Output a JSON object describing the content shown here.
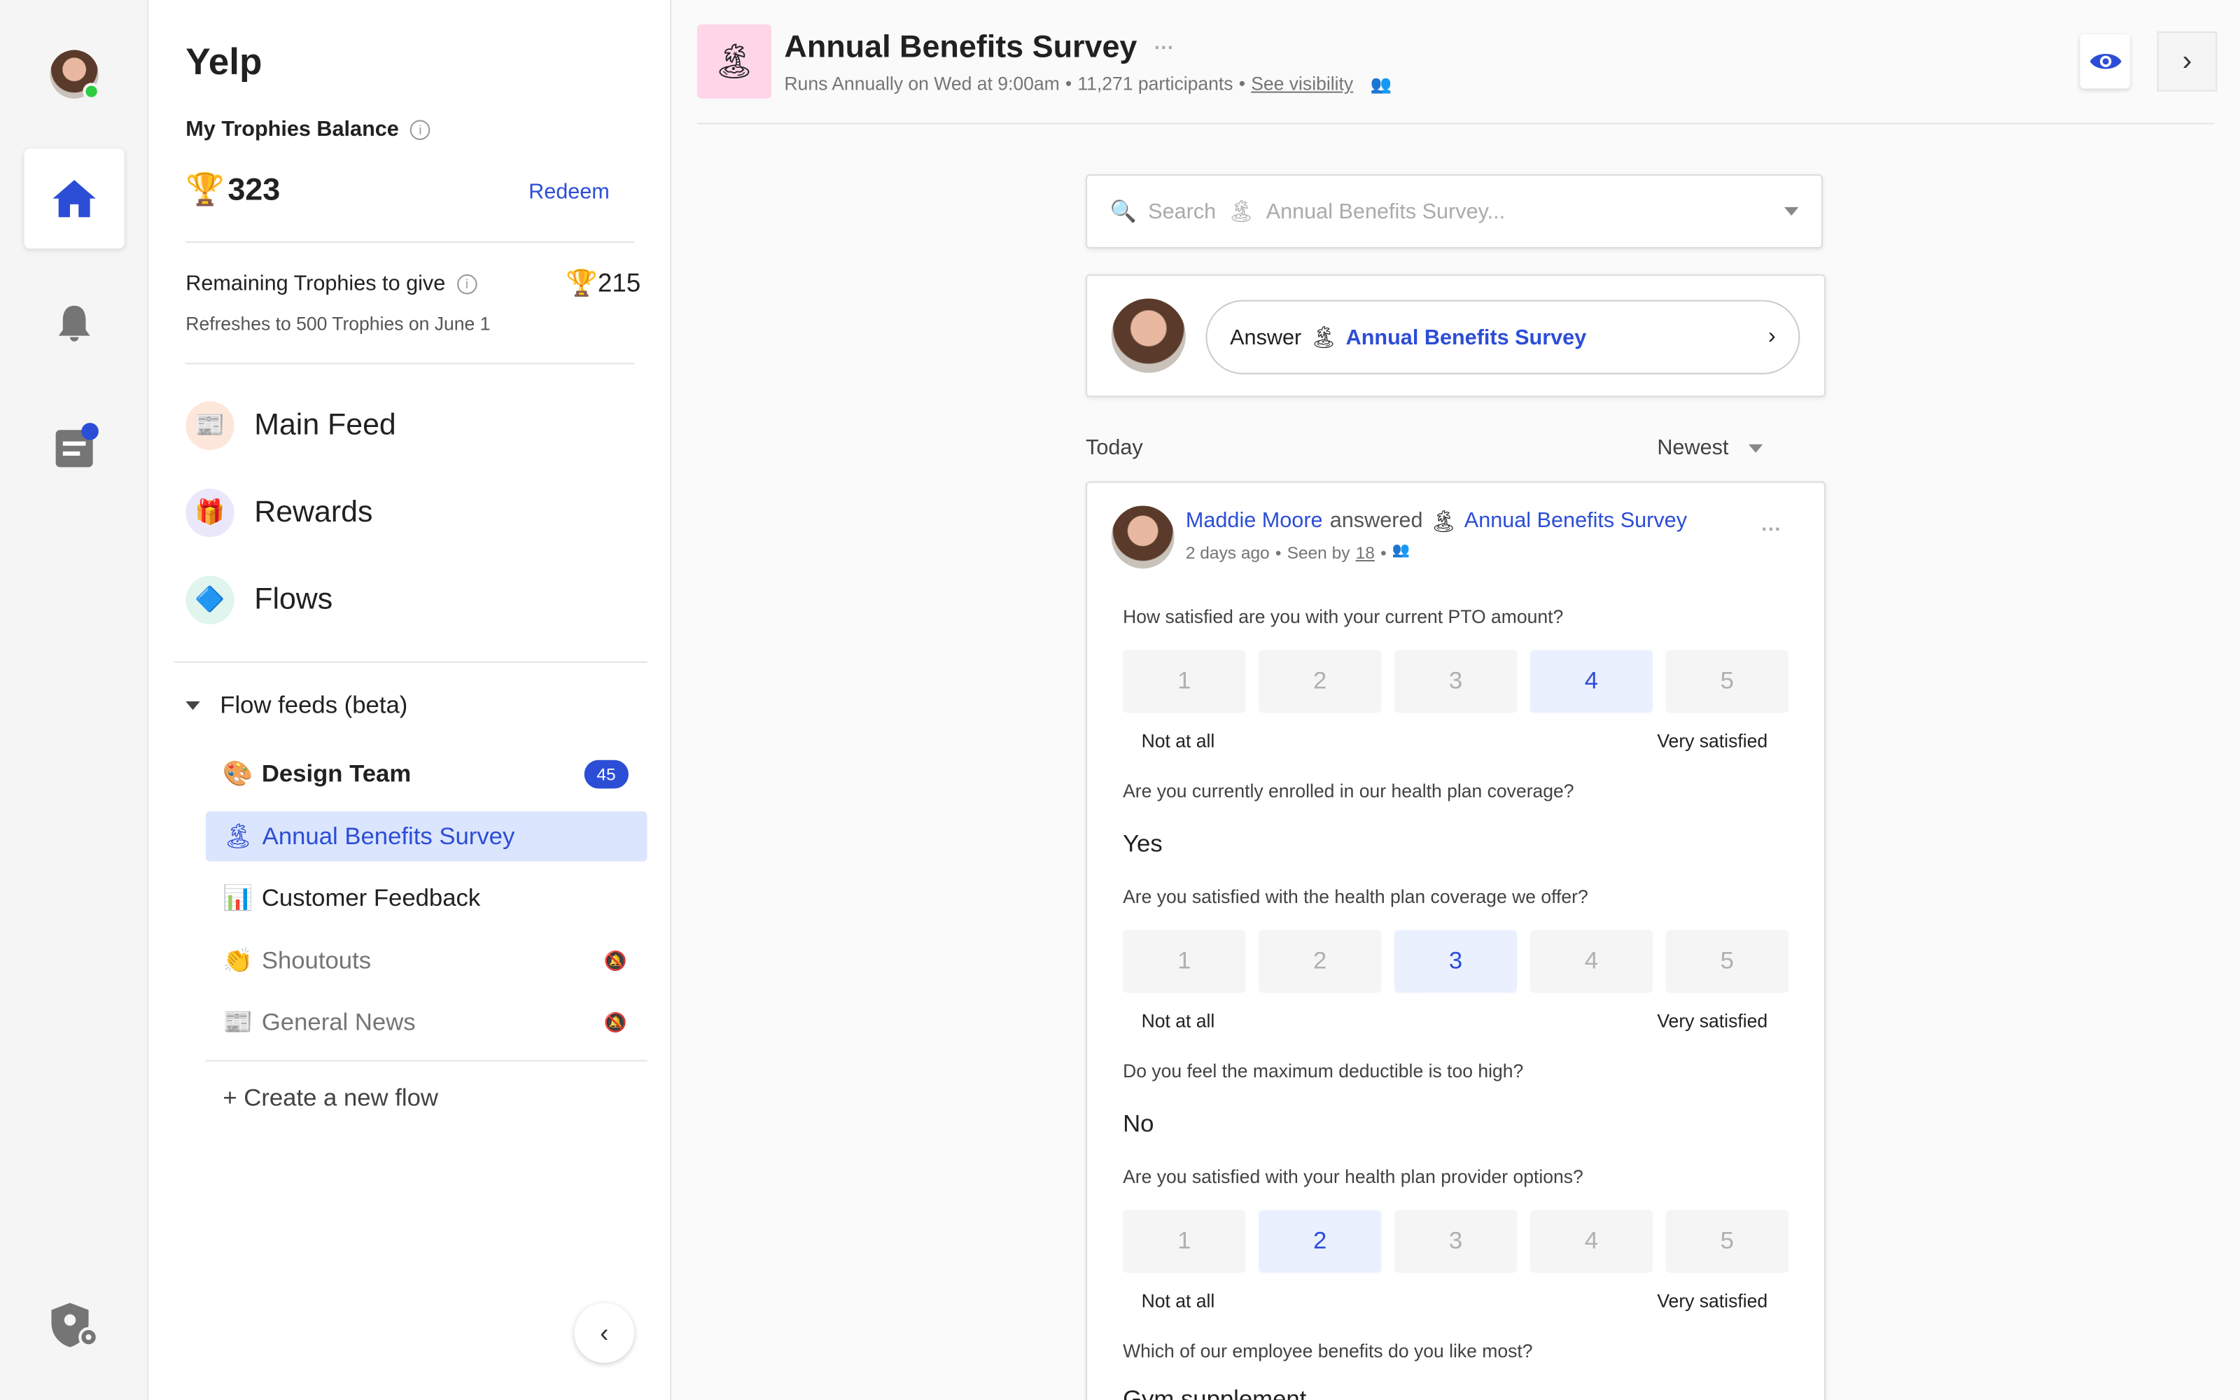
{
  "rail": {
    "items": [
      "home-icon",
      "bell-icon",
      "clipboard-icon",
      "shield-gear-icon"
    ]
  },
  "sidebar": {
    "org": "Yelp",
    "balance_label": "My Trophies Balance",
    "balance": "323",
    "redeem": "Redeem",
    "remaining_label": "Remaining Trophies to give",
    "remaining": "215",
    "refresh_note": "Refreshes to 500 Trophies on June 1",
    "nav": [
      {
        "label": "Main Feed",
        "icon": "📰"
      },
      {
        "label": "Rewards",
        "icon": "🎁"
      },
      {
        "label": "Flows",
        "icon": "🔷"
      }
    ],
    "flow_feeds_label": "Flow feeds (beta)",
    "flows": [
      {
        "emoji": "🎨",
        "label": "Design Team",
        "badge": "45"
      },
      {
        "emoji": "🏝",
        "label": "Annual Benefits Survey",
        "active": true
      },
      {
        "emoji": "📊",
        "label": "Customer Feedback"
      },
      {
        "emoji": "👏",
        "label": "Shoutouts",
        "muted": true
      },
      {
        "emoji": "📰",
        "label": "General News",
        "muted": true
      }
    ],
    "create_flow": "+ Create a new flow"
  },
  "header": {
    "emoji": "🏝",
    "title": "Annual Benefits Survey",
    "schedule": "Runs Annually on Wed at 9:00am",
    "participants": "11,271 participants",
    "visibility_link": "See visibility",
    "icon_bg": "#ffd6e8"
  },
  "search": {
    "placeholder_prefix": "Search",
    "placeholder_flow": "Annual Benefits Survey..."
  },
  "answer_prompt": {
    "prefix": "Answer",
    "flow": "Annual Benefits Survey"
  },
  "feed": {
    "section": "Today",
    "sort": "Newest"
  },
  "post": {
    "author": "Maddie Moore",
    "verb": "answered",
    "flow": "Annual Benefits Survey",
    "time": "2 days ago",
    "seen_prefix": "Seen by",
    "seen_count": "18",
    "questions": [
      {
        "text": "How satisfied are you with your current PTO amount?",
        "type": "scale",
        "selected": 4
      },
      {
        "text": "Are you currently enrolled in our health plan coverage?",
        "type": "text",
        "answer": "Yes"
      },
      {
        "text": "Are you satisfied with the health plan coverage we offer?",
        "type": "scale",
        "selected": 3
      },
      {
        "text": "Do you feel the maximum deductible is too high?",
        "type": "text",
        "answer": "No"
      },
      {
        "text": "Are you satisfied with your health plan provider options?",
        "type": "scale",
        "selected": 2
      },
      {
        "text": "Which of our employee benefits do you like most?",
        "type": "text",
        "answer": "Gym supplement"
      }
    ],
    "scale_values": [
      "1",
      "2",
      "3",
      "4",
      "5"
    ],
    "scale_low": "Not at all",
    "scale_high": "Very satisfied"
  },
  "colors": {
    "accent": "#2c4dd6",
    "active_bg": "#dbe5fd"
  }
}
